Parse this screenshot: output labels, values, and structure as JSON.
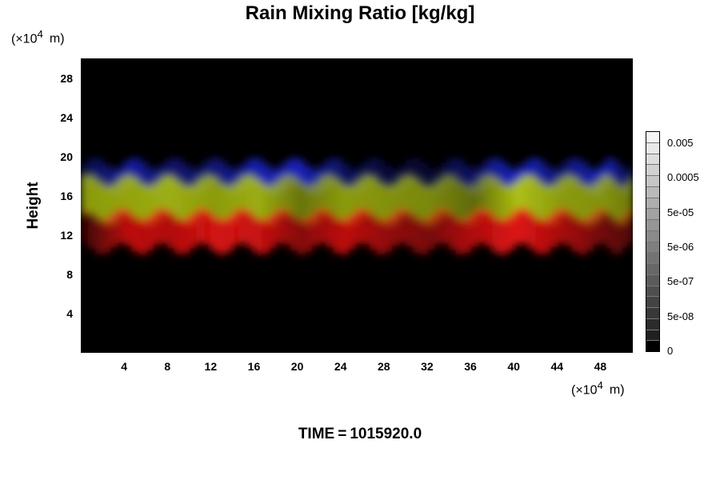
{
  "header": {
    "title": "Rain Mixing Ratio [kg/kg]",
    "unit_y": "(×10",
    "unit_y_exp": "4",
    "unit_y_suffix": "m)",
    "unit_x": "(×10",
    "unit_x_exp": "4",
    "unit_x_suffix": "m)"
  },
  "footer": {
    "time_label": "TIME",
    "time_sep": "=",
    "time_value": "1015920.0"
  },
  "chart_data": {
    "type": "heatmap",
    "title": "Rain Mixing Ratio [kg/kg]",
    "ylabel": "Height",
    "xlabel": "",
    "xlim": [
      0,
      51
    ],
    "ylim": [
      0,
      30
    ],
    "x_ticks": [
      4,
      8,
      12,
      16,
      20,
      24,
      28,
      32,
      36,
      40,
      44,
      48
    ],
    "y_ticks": [
      4,
      8,
      12,
      16,
      20,
      24,
      28
    ],
    "background_color": "#000000",
    "layers": [
      {
        "color": "#1e28dc",
        "height_range": [
          16.8,
          19.3
        ],
        "samples": [
          {
            "x": 0,
            "v": 0.3
          },
          {
            "x": 4,
            "v": 0.7
          },
          {
            "x": 8,
            "v": 0.45
          },
          {
            "x": 12,
            "v": 0.5
          },
          {
            "x": 16,
            "v": 0.75
          },
          {
            "x": 20,
            "v": 0.8
          },
          {
            "x": 24,
            "v": 0.4
          },
          {
            "x": 28,
            "v": 0.25
          },
          {
            "x": 32,
            "v": 0.2
          },
          {
            "x": 36,
            "v": 0.45
          },
          {
            "x": 40,
            "v": 0.85
          },
          {
            "x": 44,
            "v": 0.5
          },
          {
            "x": 48,
            "v": 0.8
          },
          {
            "x": 51,
            "v": 0.2
          }
        ]
      },
      {
        "color": "#b4c814",
        "height_range": [
          13.6,
          17.6
        ],
        "samples": [
          {
            "x": 0,
            "v": 0.75
          },
          {
            "x": 4,
            "v": 0.8
          },
          {
            "x": 8,
            "v": 0.85
          },
          {
            "x": 12,
            "v": 0.75
          },
          {
            "x": 16,
            "v": 0.85
          },
          {
            "x": 20,
            "v": 0.55
          },
          {
            "x": 24,
            "v": 0.75
          },
          {
            "x": 28,
            "v": 0.7
          },
          {
            "x": 32,
            "v": 0.65
          },
          {
            "x": 36,
            "v": 0.5
          },
          {
            "x": 40,
            "v": 0.95
          },
          {
            "x": 44,
            "v": 0.75
          },
          {
            "x": 48,
            "v": 0.7
          },
          {
            "x": 51,
            "v": 0.55
          }
        ]
      },
      {
        "color": "#e61414",
        "height_range": [
          10.6,
          14.2
        ],
        "samples": [
          {
            "x": 0,
            "v": 0.25
          },
          {
            "x": 4,
            "v": 0.8
          },
          {
            "x": 8,
            "v": 0.75
          },
          {
            "x": 12,
            "v": 0.9
          },
          {
            "x": 16,
            "v": 0.85
          },
          {
            "x": 20,
            "v": 0.55
          },
          {
            "x": 24,
            "v": 0.8
          },
          {
            "x": 28,
            "v": 0.6
          },
          {
            "x": 32,
            "v": 0.5
          },
          {
            "x": 36,
            "v": 0.75
          },
          {
            "x": 40,
            "v": 0.95
          },
          {
            "x": 44,
            "v": 0.7
          },
          {
            "x": 48,
            "v": 0.45
          },
          {
            "x": 51,
            "v": 0.3
          }
        ]
      }
    ],
    "colorbar": {
      "levels": 20,
      "labels": [
        "0.005",
        "0.0005",
        "5e-05",
        "5e-06",
        "5e-07",
        "5e-08",
        "0"
      ],
      "min_color": "#000000",
      "max_color": "#ffffff"
    }
  }
}
